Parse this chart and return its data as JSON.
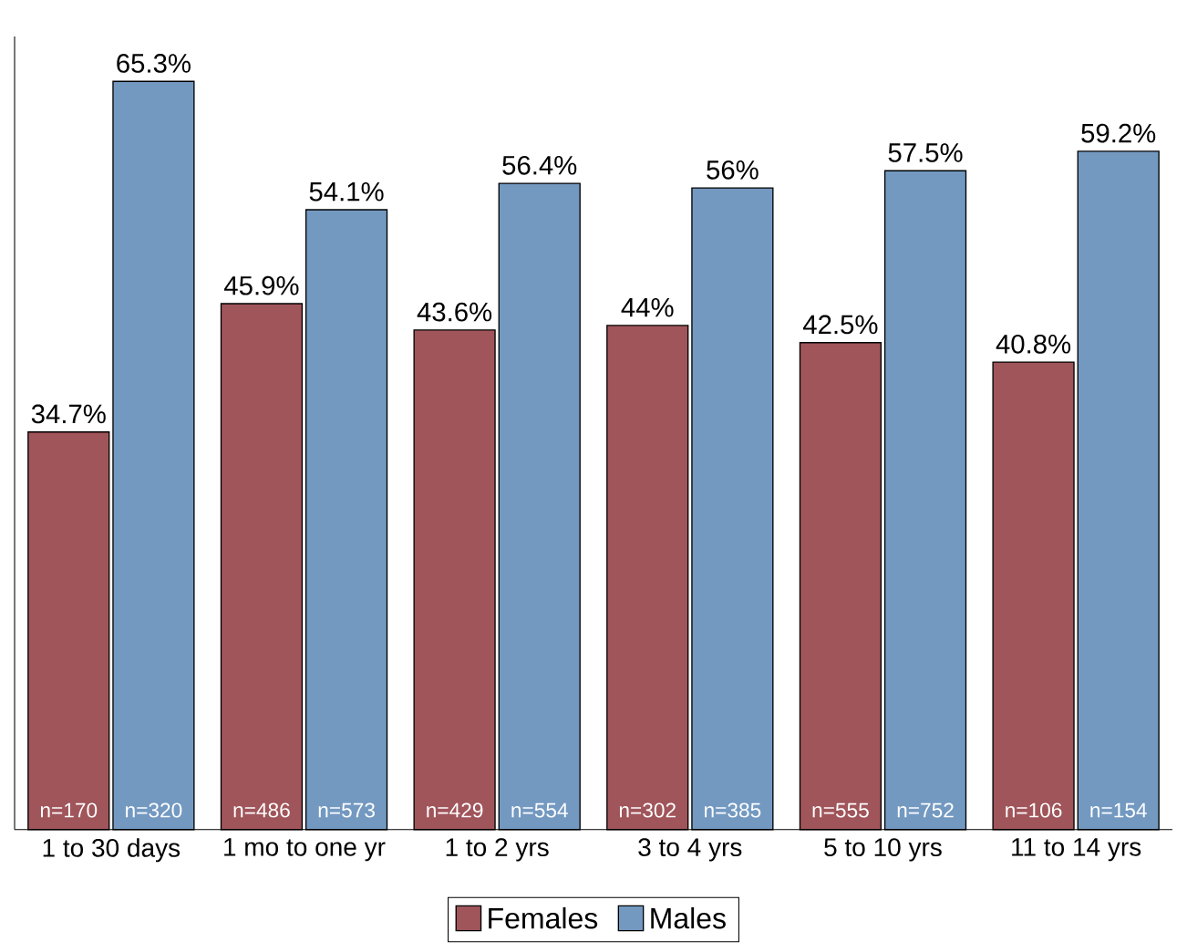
{
  "chart_data": {
    "type": "bar",
    "categories": [
      "1 to 30 days",
      "1 mo to one yr",
      "1 to 2 yrs",
      "3 to 4 yrs",
      "5 to 10 yrs",
      "11 to 14 yrs"
    ],
    "series": [
      {
        "name": "Females",
        "color": "#a0555a",
        "values": [
          34.7,
          45.9,
          43.6,
          44,
          42.5,
          40.8
        ],
        "value_labels": [
          "34.7%",
          "45.9%",
          "43.6%",
          "44%",
          "42.5%",
          "40.8%"
        ]
      },
      {
        "name": "Males",
        "color": "#7399c1",
        "values": [
          65.3,
          54.1,
          56.4,
          56,
          57.5,
          59.2
        ],
        "value_labels": [
          "65.3%",
          "54.1%",
          "56.4%",
          "56%",
          "57.5%",
          "59.2%"
        ]
      }
    ],
    "annotations": [
      "n=170",
      "n=320",
      "n=486",
      "n=573",
      "n=429",
      "n=554",
      "n=302",
      "n=385",
      "n=555",
      "n=752",
      "n=106",
      "n=154"
    ],
    "legend": "bottom"
  }
}
